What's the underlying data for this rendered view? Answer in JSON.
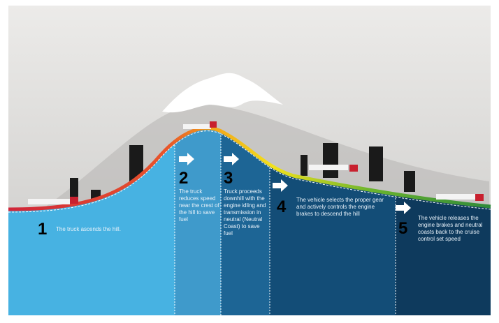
{
  "steps": [
    {
      "number": "1",
      "text": "The truck ascends the hill."
    },
    {
      "number": "2",
      "text": "The truck reduces speed near the crest of the hill to save fuel"
    },
    {
      "number": "3",
      "text": "Truck proceeds downhill with the engine idling and transmission in neutral (Neutral Coast) to save fuel"
    },
    {
      "number": "4",
      "text": "The vehicle selects the proper gear and actively controls the engine brakes to descend the hill"
    },
    {
      "number": "5",
      "text": "The vehicle releases the engine brakes and neutral coasts back to the cruise control set speed"
    }
  ]
}
